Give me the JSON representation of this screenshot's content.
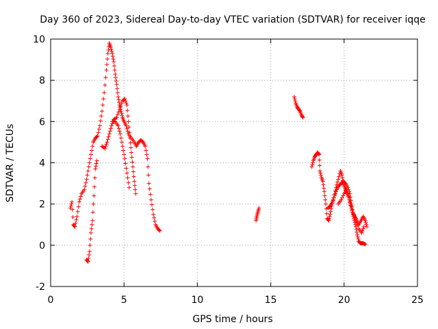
{
  "chart_data": {
    "type": "scatter",
    "title": "Day 360 of 2023, Sidereal Day-to-day VTEC variation (SDTVAR) for receiver iqqe",
    "xlabel": "GPS time / hours",
    "ylabel": "SDTVAR / TECUs",
    "xlim": [
      0,
      25
    ],
    "ylim": [
      -2,
      10
    ],
    "xticks": [
      0,
      5,
      10,
      15,
      20,
      25
    ],
    "yticks": [
      -2,
      0,
      2,
      4,
      6,
      8,
      10
    ],
    "grid": true,
    "marker": "+",
    "color": "#ff0000",
    "series": [
      {
        "name": "arc1",
        "points": [
          [
            1.35,
            1.8
          ],
          [
            1.45,
            2.1
          ],
          [
            1.55,
            1.0
          ],
          [
            1.65,
            0.9
          ],
          [
            1.8,
            1.4
          ],
          [
            1.95,
            2.1
          ],
          [
            2.1,
            2.5
          ],
          [
            2.3,
            2.7
          ],
          [
            2.45,
            3.2
          ],
          [
            2.6,
            3.8
          ],
          [
            2.75,
            4.4
          ],
          [
            2.9,
            5.0
          ],
          [
            3.05,
            5.2
          ],
          [
            3.2,
            5.3
          ],
          [
            3.35,
            5.8
          ],
          [
            3.5,
            6.5
          ],
          [
            3.65,
            7.4
          ],
          [
            3.8,
            8.5
          ],
          [
            3.9,
            9.3
          ],
          [
            4.0,
            9.8
          ],
          [
            4.1,
            9.6
          ],
          [
            4.2,
            9.3
          ],
          [
            4.3,
            8.9
          ],
          [
            4.4,
            8.3
          ],
          [
            4.5,
            7.8
          ],
          [
            4.6,
            7.2
          ],
          [
            4.7,
            6.8
          ],
          [
            4.8,
            6.5
          ],
          [
            4.9,
            6.2
          ],
          [
            5.0,
            6.0
          ],
          [
            5.15,
            5.8
          ],
          [
            5.3,
            5.4
          ],
          [
            5.5,
            5.2
          ],
          [
            5.7,
            5.0
          ],
          [
            5.85,
            4.8
          ],
          [
            6.0,
            5.0
          ],
          [
            6.15,
            5.1
          ],
          [
            6.3,
            5.0
          ],
          [
            6.45,
            4.8
          ],
          [
            6.6,
            4.2
          ],
          [
            6.7,
            3.0
          ],
          [
            6.85,
            2.2
          ],
          [
            7.0,
            1.5
          ],
          [
            7.15,
            1.0
          ],
          [
            7.3,
            0.8
          ],
          [
            7.45,
            0.7
          ]
        ]
      },
      {
        "name": "arc2",
        "points": [
          [
            2.45,
            -0.7
          ],
          [
            2.55,
            -0.8
          ],
          [
            2.65,
            -0.3
          ],
          [
            2.75,
            0.6
          ],
          [
            2.85,
            1.2
          ],
          [
            2.95,
            2.4
          ],
          [
            3.05,
            3.7
          ],
          [
            3.15,
            4.1
          ]
        ]
      },
      {
        "name": "arc3",
        "points": [
          [
            3.5,
            4.8
          ],
          [
            3.7,
            4.7
          ],
          [
            3.85,
            5.0
          ],
          [
            4.0,
            5.4
          ],
          [
            4.15,
            5.8
          ],
          [
            4.3,
            6.1
          ],
          [
            4.5,
            6.2
          ],
          [
            4.7,
            6.6
          ],
          [
            4.9,
            7.0
          ],
          [
            5.05,
            7.1
          ],
          [
            5.2,
            6.8
          ],
          [
            5.3,
            6.0
          ],
          [
            5.4,
            5.2
          ],
          [
            5.5,
            4.5
          ],
          [
            5.6,
            3.8
          ],
          [
            5.7,
            3.1
          ],
          [
            5.8,
            2.5
          ]
        ]
      },
      {
        "name": "arc4",
        "points": [
          [
            4.2,
            6.0
          ],
          [
            4.4,
            6.0
          ],
          [
            4.6,
            5.8
          ],
          [
            4.75,
            5.4
          ],
          [
            4.9,
            4.8
          ],
          [
            5.05,
            4.2
          ],
          [
            5.2,
            3.5
          ],
          [
            5.35,
            2.8
          ]
        ]
      },
      {
        "name": "arc5",
        "points": [
          [
            14.0,
            1.2
          ],
          [
            14.05,
            1.4
          ],
          [
            14.12,
            1.6
          ],
          [
            14.2,
            1.8
          ]
        ]
      },
      {
        "name": "arc6",
        "points": [
          [
            16.6,
            7.2
          ],
          [
            16.7,
            6.9
          ],
          [
            16.8,
            6.7
          ],
          [
            16.9,
            6.6
          ],
          [
            17.0,
            6.5
          ],
          [
            17.1,
            6.3
          ],
          [
            17.2,
            6.2
          ]
        ]
      },
      {
        "name": "arc7",
        "points": [
          [
            17.8,
            3.8
          ],
          [
            17.9,
            4.1
          ],
          [
            18.0,
            4.3
          ],
          [
            18.1,
            4.4
          ],
          [
            18.2,
            4.5
          ],
          [
            18.3,
            4.4
          ],
          [
            18.35,
            3.6
          ],
          [
            18.45,
            3.3
          ],
          [
            18.55,
            3.1
          ],
          [
            18.65,
            2.6
          ],
          [
            18.75,
            2.0
          ],
          [
            18.85,
            1.3
          ],
          [
            18.95,
            1.2
          ],
          [
            19.05,
            1.5
          ],
          [
            19.15,
            1.9
          ],
          [
            19.3,
            2.3
          ],
          [
            19.45,
            2.8
          ],
          [
            19.6,
            3.2
          ],
          [
            19.75,
            3.6
          ],
          [
            19.85,
            3.4
          ],
          [
            19.95,
            3.0
          ],
          [
            20.05,
            2.8
          ],
          [
            20.15,
            2.6
          ],
          [
            20.3,
            2.4
          ],
          [
            20.4,
            2.1
          ],
          [
            20.5,
            1.8
          ],
          [
            20.6,
            1.5
          ],
          [
            20.7,
            1.2
          ],
          [
            20.8,
            0.9
          ],
          [
            20.9,
            0.5
          ],
          [
            21.0,
            0.2
          ],
          [
            21.1,
            0.1
          ],
          [
            21.2,
            0.1
          ],
          [
            21.3,
            0.1
          ],
          [
            21.45,
            0.05
          ]
        ]
      },
      {
        "name": "arc8",
        "points": [
          [
            18.9,
            1.8
          ],
          [
            19.05,
            1.9
          ],
          [
            19.2,
            2.1
          ],
          [
            19.35,
            2.4
          ],
          [
            19.5,
            2.7
          ],
          [
            19.65,
            2.9
          ],
          [
            19.8,
            3.0
          ],
          [
            19.95,
            3.1
          ],
          [
            20.1,
            3.0
          ],
          [
            20.25,
            2.8
          ],
          [
            20.4,
            2.5
          ],
          [
            20.5,
            2.0
          ],
          [
            20.6,
            1.6
          ],
          [
            20.7,
            1.4
          ],
          [
            20.85,
            1.2
          ],
          [
            21.0,
            1.0
          ],
          [
            21.15,
            1.2
          ],
          [
            21.3,
            1.4
          ],
          [
            21.45,
            1.2
          ],
          [
            21.55,
            0.9
          ]
        ]
      },
      {
        "name": "arc9",
        "points": [
          [
            19.6,
            2.0
          ],
          [
            19.8,
            2.2
          ],
          [
            20.0,
            2.5
          ],
          [
            20.15,
            2.7
          ],
          [
            20.35,
            2.2
          ],
          [
            20.5,
            1.8
          ],
          [
            20.65,
            1.5
          ],
          [
            20.8,
            1.3
          ],
          [
            21.0,
            0.8
          ],
          [
            21.2,
            0.6
          ],
          [
            21.35,
            0.9
          ]
        ]
      }
    ]
  }
}
